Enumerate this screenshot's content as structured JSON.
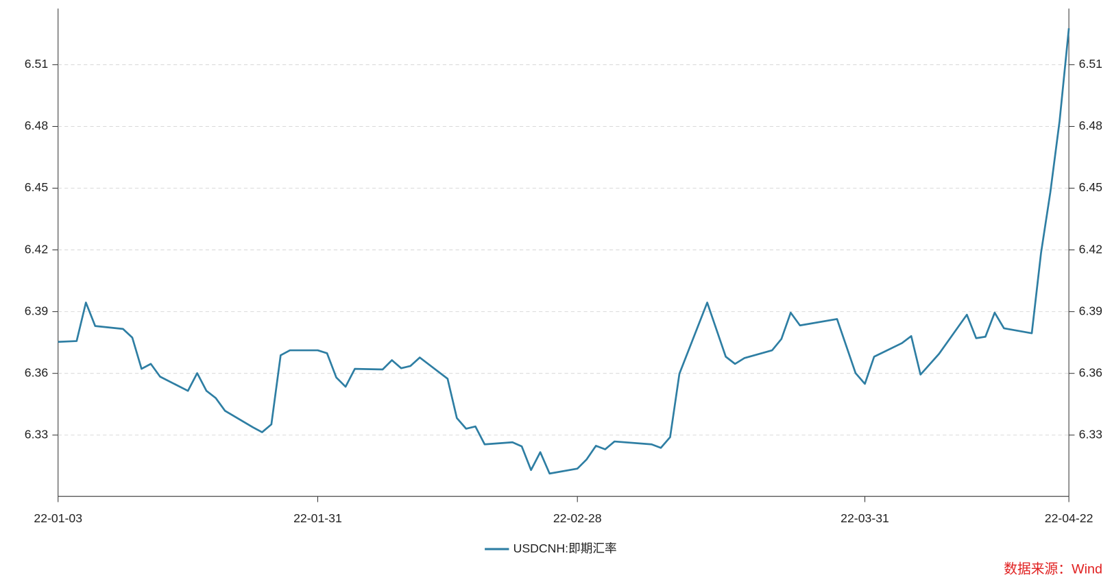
{
  "chart_data": {
    "type": "line",
    "x": [
      "22-01-03",
      "22-01-05",
      "22-01-06",
      "22-01-07",
      "22-01-10",
      "22-01-11",
      "22-01-12",
      "22-01-13",
      "22-01-14",
      "22-01-17",
      "22-01-18",
      "22-01-19",
      "22-01-20",
      "22-01-21",
      "22-01-24",
      "22-01-25",
      "22-01-26",
      "22-01-27",
      "22-01-28",
      "22-01-31",
      "22-02-01",
      "22-02-02",
      "22-02-03",
      "22-02-04",
      "22-02-07",
      "22-02-08",
      "22-02-09",
      "22-02-10",
      "22-02-11",
      "22-02-14",
      "22-02-15",
      "22-02-16",
      "22-02-17",
      "22-02-18",
      "22-02-21",
      "22-02-22",
      "22-02-23",
      "22-02-24",
      "22-02-25",
      "22-02-28",
      "22-03-01",
      "22-03-02",
      "22-03-03",
      "22-03-04",
      "22-03-08",
      "22-03-09",
      "22-03-10",
      "22-03-11",
      "22-03-14",
      "22-03-16",
      "22-03-17",
      "22-03-18",
      "22-03-21",
      "22-03-22",
      "22-03-23",
      "22-03-24",
      "22-03-28",
      "22-03-30",
      "22-03-31",
      "22-04-01",
      "22-04-04",
      "22-04-05",
      "22-04-06",
      "22-04-08",
      "22-04-11",
      "22-04-12",
      "22-04-13",
      "22-04-14",
      "22-04-15",
      "22-04-18",
      "22-04-19",
      "22-04-20",
      "22-04-21",
      "22-04-22"
    ],
    "series": [
      {
        "name": "USDCNH:即期汇率",
        "color": "#2e7ea3",
        "values": [
          6.3753,
          6.3757,
          6.3944,
          6.383,
          6.3816,
          6.3774,
          6.3622,
          6.3646,
          6.3584,
          6.3515,
          6.3601,
          6.3515,
          6.348,
          6.3418,
          6.3338,
          6.3314,
          6.3352,
          6.3688,
          6.3712,
          6.3712,
          6.3698,
          6.358,
          6.3535,
          6.3622,
          6.3619,
          6.3664,
          6.3625,
          6.3636,
          6.3677,
          6.3574,
          6.3383,
          6.3331,
          6.3342,
          6.3255,
          6.3265,
          6.3245,
          6.313,
          6.3217,
          6.3113,
          6.3137,
          6.3182,
          6.3248,
          6.3231,
          6.3269,
          6.3255,
          6.3238,
          6.329,
          6.3598,
          6.3944,
          6.3681,
          6.3646,
          6.3674,
          6.3712,
          6.3767,
          6.3895,
          6.3833,
          6.3864,
          6.3601,
          6.3549,
          6.3681,
          6.3747,
          6.3781,
          6.3594,
          6.3695,
          6.3885,
          6.3771,
          6.3778,
          6.3895,
          6.3819,
          6.3795,
          6.4186,
          6.448,
          6.4827,
          6.5277
        ]
      }
    ],
    "xlim": [
      "22-01-03",
      "22-04-22"
    ],
    "xticks": [
      "22-01-03",
      "22-01-31",
      "22-02-28",
      "22-03-31",
      "22-04-22"
    ],
    "ylim": [
      6.3002,
      6.5373
    ],
    "yticks": [
      6.33,
      6.36,
      6.39,
      6.42,
      6.45,
      6.48,
      6.51
    ],
    "grid": true,
    "legend": "bottom",
    "source": "数据来源：Wind"
  }
}
